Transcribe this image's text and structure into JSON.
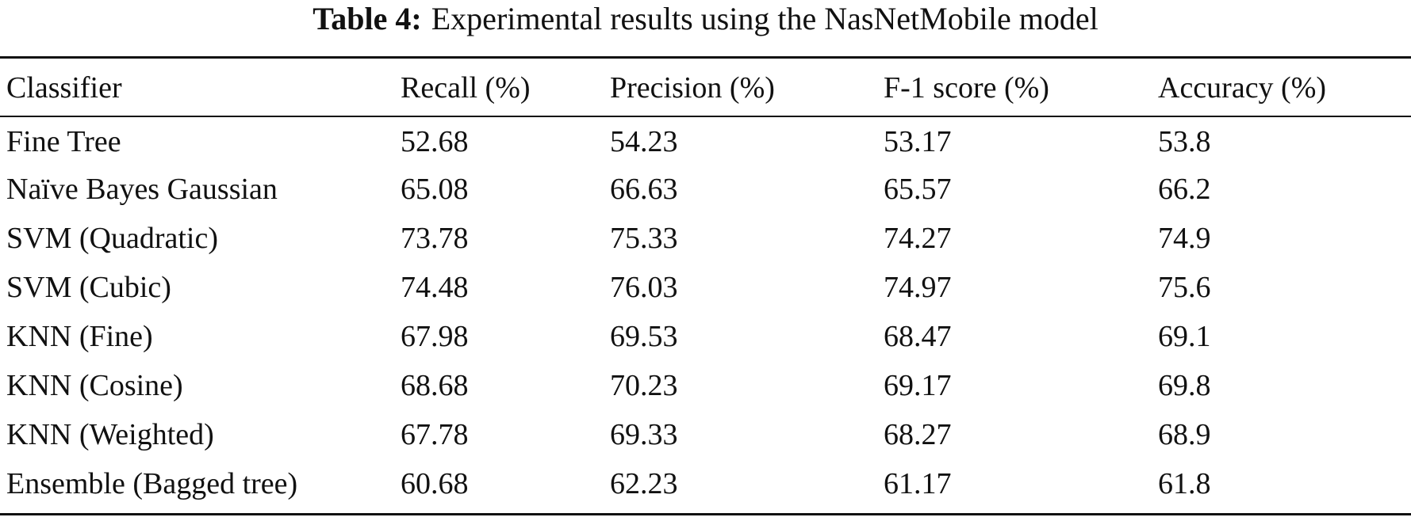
{
  "caption": {
    "label": "Table 4:",
    "text": "Experimental results using the NasNetMobile model"
  },
  "table": {
    "headers": [
      "Classifier",
      "Recall (%)",
      "Precision (%)",
      "F-1 score (%)",
      "Accuracy (%)"
    ],
    "rows": [
      [
        "Fine Tree",
        "52.68",
        "54.23",
        "53.17",
        "53.8"
      ],
      [
        "Naïve Bayes Gaussian",
        "65.08",
        "66.63",
        "65.57",
        "66.2"
      ],
      [
        "SVM (Quadratic)",
        "73.78",
        "75.33",
        "74.27",
        "74.9"
      ],
      [
        "SVM (Cubic)",
        "74.48",
        "76.03",
        "74.97",
        "75.6"
      ],
      [
        "KNN (Fine)",
        "67.98",
        "69.53",
        "68.47",
        "69.1"
      ],
      [
        "KNN (Cosine)",
        "68.68",
        "70.23",
        "69.17",
        "69.8"
      ],
      [
        "KNN (Weighted)",
        "67.78",
        "69.33",
        "68.27",
        "68.9"
      ],
      [
        "Ensemble (Bagged tree)",
        "60.68",
        "62.23",
        "61.17",
        "61.8"
      ]
    ]
  },
  "chart_data": {
    "type": "table",
    "title": "Experimental results using the NasNetMobile model",
    "columns": [
      "Classifier",
      "Recall (%)",
      "Precision (%)",
      "F-1 score (%)",
      "Accuracy (%)"
    ],
    "rows": [
      {
        "Classifier": "Fine Tree",
        "Recall (%)": 52.68,
        "Precision (%)": 54.23,
        "F-1 score (%)": 53.17,
        "Accuracy (%)": 53.8
      },
      {
        "Classifier": "Naïve Bayes Gaussian",
        "Recall (%)": 65.08,
        "Precision (%)": 66.63,
        "F-1 score (%)": 65.57,
        "Accuracy (%)": 66.2
      },
      {
        "Classifier": "SVM (Quadratic)",
        "Recall (%)": 73.78,
        "Precision (%)": 75.33,
        "F-1 score (%)": 74.27,
        "Accuracy (%)": 74.9
      },
      {
        "Classifier": "SVM (Cubic)",
        "Recall (%)": 74.48,
        "Precision (%)": 76.03,
        "F-1 score (%)": 74.97,
        "Accuracy (%)": 75.6
      },
      {
        "Classifier": "KNN (Fine)",
        "Recall (%)": 67.98,
        "Precision (%)": 69.53,
        "F-1 score (%)": 68.47,
        "Accuracy (%)": 69.1
      },
      {
        "Classifier": "KNN (Cosine)",
        "Recall (%)": 68.68,
        "Precision (%)": 70.23,
        "F-1 score (%)": 69.17,
        "Accuracy (%)": 69.8
      },
      {
        "Classifier": "KNN (Weighted)",
        "Recall (%)": 67.78,
        "Precision (%)": 69.33,
        "F-1 score (%)": 68.27,
        "Accuracy (%)": 68.9
      },
      {
        "Classifier": "Ensemble (Bagged tree)",
        "Recall (%)": 60.68,
        "Precision (%)": 62.23,
        "F-1 score (%)": 61.17,
        "Accuracy (%)": 61.8
      }
    ]
  }
}
